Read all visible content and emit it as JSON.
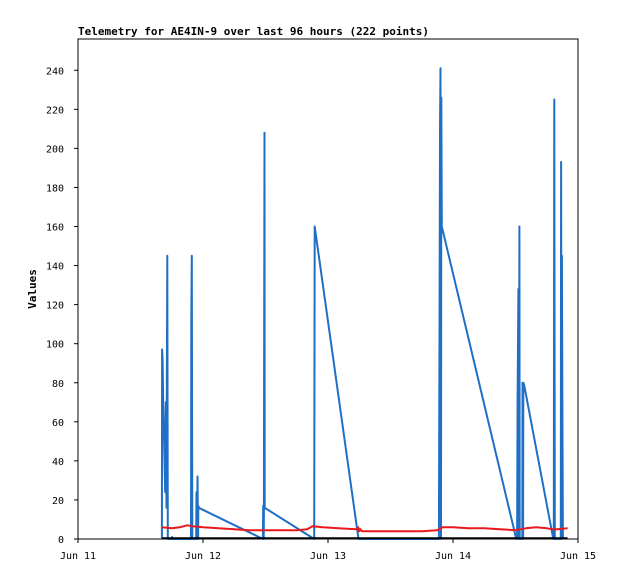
{
  "chart_data": {
    "type": "line",
    "title": "Telemetry for AE4IN-9 over last 96 hours (222 points)",
    "xlabel": "",
    "ylabel": "Values",
    "x_tick_labels": [
      "Jun 11",
      "Jun 12",
      "Jun 13",
      "Jun 14",
      "Jun 15"
    ],
    "y_ticks": [
      0,
      20,
      40,
      60,
      80,
      100,
      120,
      140,
      160,
      180,
      200,
      220,
      240
    ],
    "xlim": [
      0,
      96
    ],
    "ylim": [
      0,
      256
    ],
    "grid": false,
    "legend": "none",
    "colors": {
      "blue_series": "#1f6fc5",
      "red_series": "#e8191c",
      "black_series": "#000000",
      "axis": "#000000",
      "background": "#ffffff"
    },
    "series": [
      {
        "color": "#1f6fc5",
        "points": [
          [
            16.1,
            0
          ],
          [
            16.15,
            97
          ],
          [
            16.25,
            92
          ],
          [
            16.35,
            70
          ],
          [
            16.5,
            55
          ],
          [
            16.6,
            40
          ],
          [
            16.75,
            24
          ],
          [
            16.85,
            70
          ],
          [
            17.0,
            16
          ],
          [
            17.05,
            73
          ],
          [
            17.15,
            145
          ],
          [
            17.25,
            0
          ],
          [
            18.0,
            0
          ],
          [
            18.05,
            1
          ],
          [
            18.1,
            0
          ],
          [
            21.7,
            0
          ],
          [
            21.75,
            112
          ],
          [
            21.85,
            145
          ],
          [
            21.95,
            0
          ],
          [
            22.7,
            0
          ],
          [
            22.75,
            24
          ],
          [
            22.85,
            0
          ],
          [
            22.95,
            32
          ],
          [
            23.05,
            0
          ],
          [
            23.1,
            17
          ],
          [
            23.2,
            16
          ],
          [
            35.5,
            0
          ],
          [
            35.55,
            17
          ],
          [
            35.65,
            0
          ],
          [
            35.7,
            16
          ],
          [
            35.8,
            208
          ],
          [
            35.85,
            16
          ],
          [
            45.35,
            0
          ],
          [
            45.45,
            160
          ],
          [
            53.85,
            0
          ],
          [
            69.3,
            0
          ],
          [
            69.4,
            104
          ],
          [
            69.5,
            208
          ],
          [
            69.6,
            241
          ],
          [
            69.7,
            0
          ],
          [
            69.75,
            226
          ],
          [
            69.85,
            160
          ],
          [
            84.15,
            0
          ],
          [
            84.3,
            0
          ],
          [
            84.4,
            72
          ],
          [
            84.55,
            128
          ],
          [
            84.65,
            0
          ],
          [
            84.75,
            160
          ],
          [
            84.8,
            0
          ],
          [
            85.3,
            0
          ],
          [
            85.35,
            80
          ],
          [
            85.45,
            0
          ],
          [
            85.5,
            80
          ],
          [
            85.65,
            79
          ],
          [
            91.25,
            0
          ],
          [
            91.35,
            0
          ],
          [
            91.45,
            225
          ],
          [
            91.55,
            0
          ],
          [
            92.7,
            0
          ],
          [
            92.75,
            193
          ],
          [
            92.85,
            0
          ],
          [
            92.9,
            145
          ],
          [
            93.0,
            65
          ],
          [
            93.1,
            0
          ]
        ]
      },
      {
        "color": "#e8191c",
        "points": [
          [
            16.1,
            6
          ],
          [
            18.0,
            5.5
          ],
          [
            19.5,
            6
          ],
          [
            21.0,
            7
          ],
          [
            22.0,
            6.5
          ],
          [
            24.0,
            6
          ],
          [
            27.0,
            5.5
          ],
          [
            30.0,
            5
          ],
          [
            33.0,
            4.5
          ],
          [
            36.0,
            4.5
          ],
          [
            39.0,
            4.5
          ],
          [
            42.0,
            4.5
          ],
          [
            44.0,
            5
          ],
          [
            45.0,
            6.5
          ],
          [
            47.0,
            6
          ],
          [
            50.0,
            5.5
          ],
          [
            53.5,
            5
          ],
          [
            53.8,
            6
          ],
          [
            54.0,
            4
          ],
          [
            54.2,
            5
          ],
          [
            54.5,
            4
          ],
          [
            57.0,
            4
          ],
          [
            60.0,
            4
          ],
          [
            63.0,
            4
          ],
          [
            66.0,
            4
          ],
          [
            69.0,
            4.5
          ],
          [
            70.0,
            6
          ],
          [
            72.0,
            6
          ],
          [
            75.0,
            5.5
          ],
          [
            78.0,
            5.5
          ],
          [
            81.0,
            5
          ],
          [
            84.0,
            4.5
          ],
          [
            86.0,
            5.5
          ],
          [
            88.0,
            6
          ],
          [
            90.0,
            5.5
          ],
          [
            91.0,
            5
          ],
          [
            92.0,
            5
          ],
          [
            94.0,
            5.5
          ]
        ]
      },
      {
        "color": "#000000",
        "points": [
          [
            16.1,
            0.4
          ],
          [
            94.0,
            0.4
          ]
        ]
      }
    ]
  }
}
